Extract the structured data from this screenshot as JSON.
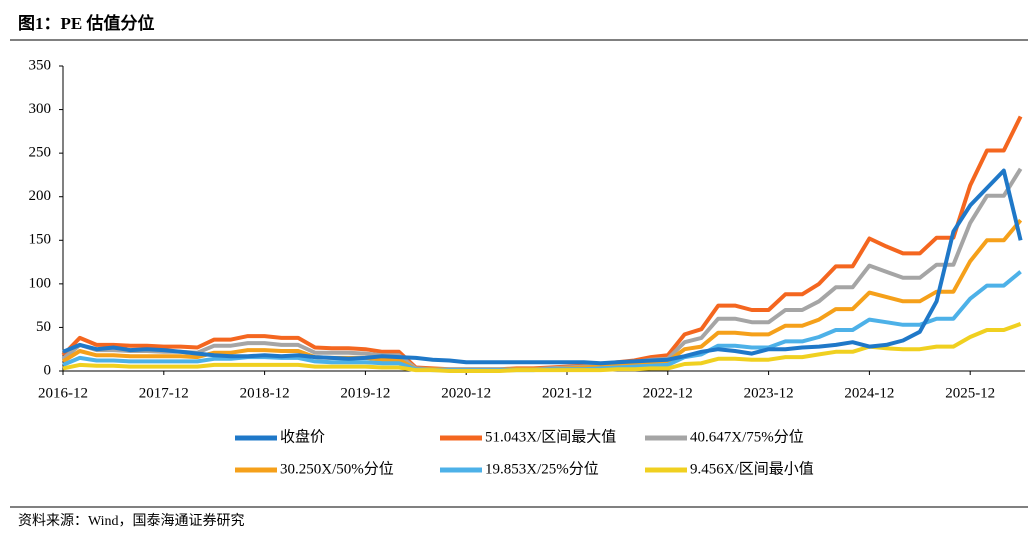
{
  "chart_data": {
    "type": "line",
    "title": "图1：PE 估值分位",
    "source": "资料来源：Wind，国泰海通证券研究",
    "x": [
      "2016-12",
      "2017-02",
      "2017-04",
      "2017-06",
      "2017-08",
      "2017-10",
      "2017-12",
      "2018-02",
      "2018-04",
      "2018-06",
      "2018-08",
      "2018-10",
      "2018-12",
      "2019-02",
      "2019-04",
      "2019-06",
      "2019-08",
      "2019-10",
      "2019-12",
      "2020-02",
      "2020-04",
      "2020-06",
      "2020-08",
      "2020-10",
      "2020-12",
      "2021-02",
      "2021-04",
      "2021-06",
      "2021-08",
      "2021-10",
      "2021-12",
      "2022-02",
      "2022-04",
      "2022-06",
      "2022-08",
      "2022-10",
      "2022-12",
      "2023-02",
      "2023-04",
      "2023-06",
      "2023-08",
      "2023-10",
      "2023-12",
      "2024-02",
      "2024-04",
      "2024-06",
      "2024-08",
      "2024-10",
      "2024-12",
      "2025-02",
      "2025-04",
      "2025-06",
      "2025-08",
      "2025-10",
      "2025-12",
      "2026-02",
      "2026-04",
      "2026-06"
    ],
    "xticks": [
      "2016-12",
      "2017-12",
      "2018-12",
      "2019-12",
      "2020-12",
      "2021-12",
      "2022-12",
      "2023-12",
      "2024-12",
      "2025-12"
    ],
    "ylim": [
      0,
      350
    ],
    "yticks": [
      0,
      50,
      100,
      150,
      200,
      250,
      300,
      350
    ],
    "grid": false,
    "series": [
      {
        "name": "收盘价",
        "color": "#1f78c8",
        "values": [
          22,
          30,
          25,
          27,
          24,
          25,
          24,
          22,
          20,
          18,
          17,
          17,
          18,
          17,
          18,
          16,
          15,
          14,
          15,
          17,
          16,
          15,
          13,
          12,
          10,
          10,
          10,
          10,
          10,
          10,
          10,
          10,
          9,
          10,
          11,
          12,
          13,
          17,
          22,
          25,
          23,
          20,
          25,
          25,
          27,
          28,
          30,
          33,
          28,
          30,
          35,
          45,
          80,
          160,
          190,
          210,
          230,
          150
        ]
      },
      {
        "name": "51.043X/区间最大值",
        "color": "#f4661f",
        "values": [
          18,
          38,
          30,
          30,
          29,
          29,
          28,
          28,
          27,
          36,
          36,
          40,
          40,
          38,
          38,
          27,
          26,
          26,
          25,
          22,
          22,
          4,
          3,
          2,
          2,
          2,
          2,
          3,
          3,
          4,
          5,
          6,
          8,
          10,
          12,
          16,
          18,
          42,
          48,
          75,
          75,
          70,
          70,
          88,
          88,
          100,
          120,
          120,
          152,
          143,
          135,
          135,
          153,
          153,
          213,
          253,
          253,
          292
        ]
      },
      {
        "name": "40.647X/75%分位",
        "color": "#a5a5a5",
        "values": [
          14,
          30,
          24,
          24,
          23,
          23,
          22,
          22,
          21,
          29,
          29,
          32,
          32,
          30,
          30,
          21,
          21,
          21,
          20,
          18,
          18,
          3,
          2,
          2,
          2,
          2,
          2,
          2,
          2,
          3,
          4,
          5,
          6,
          8,
          10,
          13,
          14,
          33,
          38,
          60,
          60,
          56,
          56,
          70,
          70,
          80,
          96,
          96,
          121,
          114,
          107,
          107,
          122,
          122,
          170,
          201,
          201,
          232
        ]
      },
      {
        "name": "30.250X/50%分位",
        "color": "#f5a01a",
        "values": [
          11,
          23,
          18,
          18,
          17,
          17,
          17,
          17,
          16,
          21,
          21,
          24,
          24,
          23,
          23,
          16,
          15,
          15,
          15,
          13,
          13,
          2,
          2,
          1,
          1,
          1,
          1,
          2,
          2,
          2,
          3,
          4,
          5,
          6,
          7,
          9,
          11,
          25,
          28,
          44,
          44,
          42,
          42,
          52,
          52,
          59,
          71,
          71,
          90,
          85,
          80,
          80,
          91,
          91,
          126,
          150,
          150,
          173
        ]
      },
      {
        "name": "19.853X/25%分位",
        "color": "#4db1e8",
        "values": [
          7,
          15,
          12,
          12,
          11,
          11,
          11,
          11,
          11,
          14,
          14,
          16,
          16,
          15,
          15,
          11,
          10,
          10,
          10,
          9,
          9,
          2,
          1,
          1,
          1,
          1,
          1,
          1,
          1,
          2,
          2,
          2,
          3,
          4,
          5,
          6,
          7,
          16,
          19,
          29,
          29,
          27,
          27,
          34,
          34,
          39,
          47,
          47,
          59,
          56,
          53,
          53,
          60,
          60,
          83,
          98,
          98,
          114
        ]
      },
      {
        "name": "9.456X/区间最小值",
        "color": "#f0d020",
        "values": [
          3,
          7,
          6,
          6,
          5,
          5,
          5,
          5,
          5,
          7,
          7,
          7,
          7,
          7,
          7,
          5,
          5,
          5,
          5,
          4,
          4,
          1,
          1,
          0,
          0,
          0,
          0,
          1,
          1,
          1,
          1,
          1,
          1,
          2,
          2,
          3,
          3,
          8,
          9,
          14,
          14,
          13,
          13,
          16,
          16,
          19,
          22,
          22,
          28,
          26,
          25,
          25,
          28,
          28,
          39,
          47,
          47,
          54
        ]
      }
    ]
  }
}
